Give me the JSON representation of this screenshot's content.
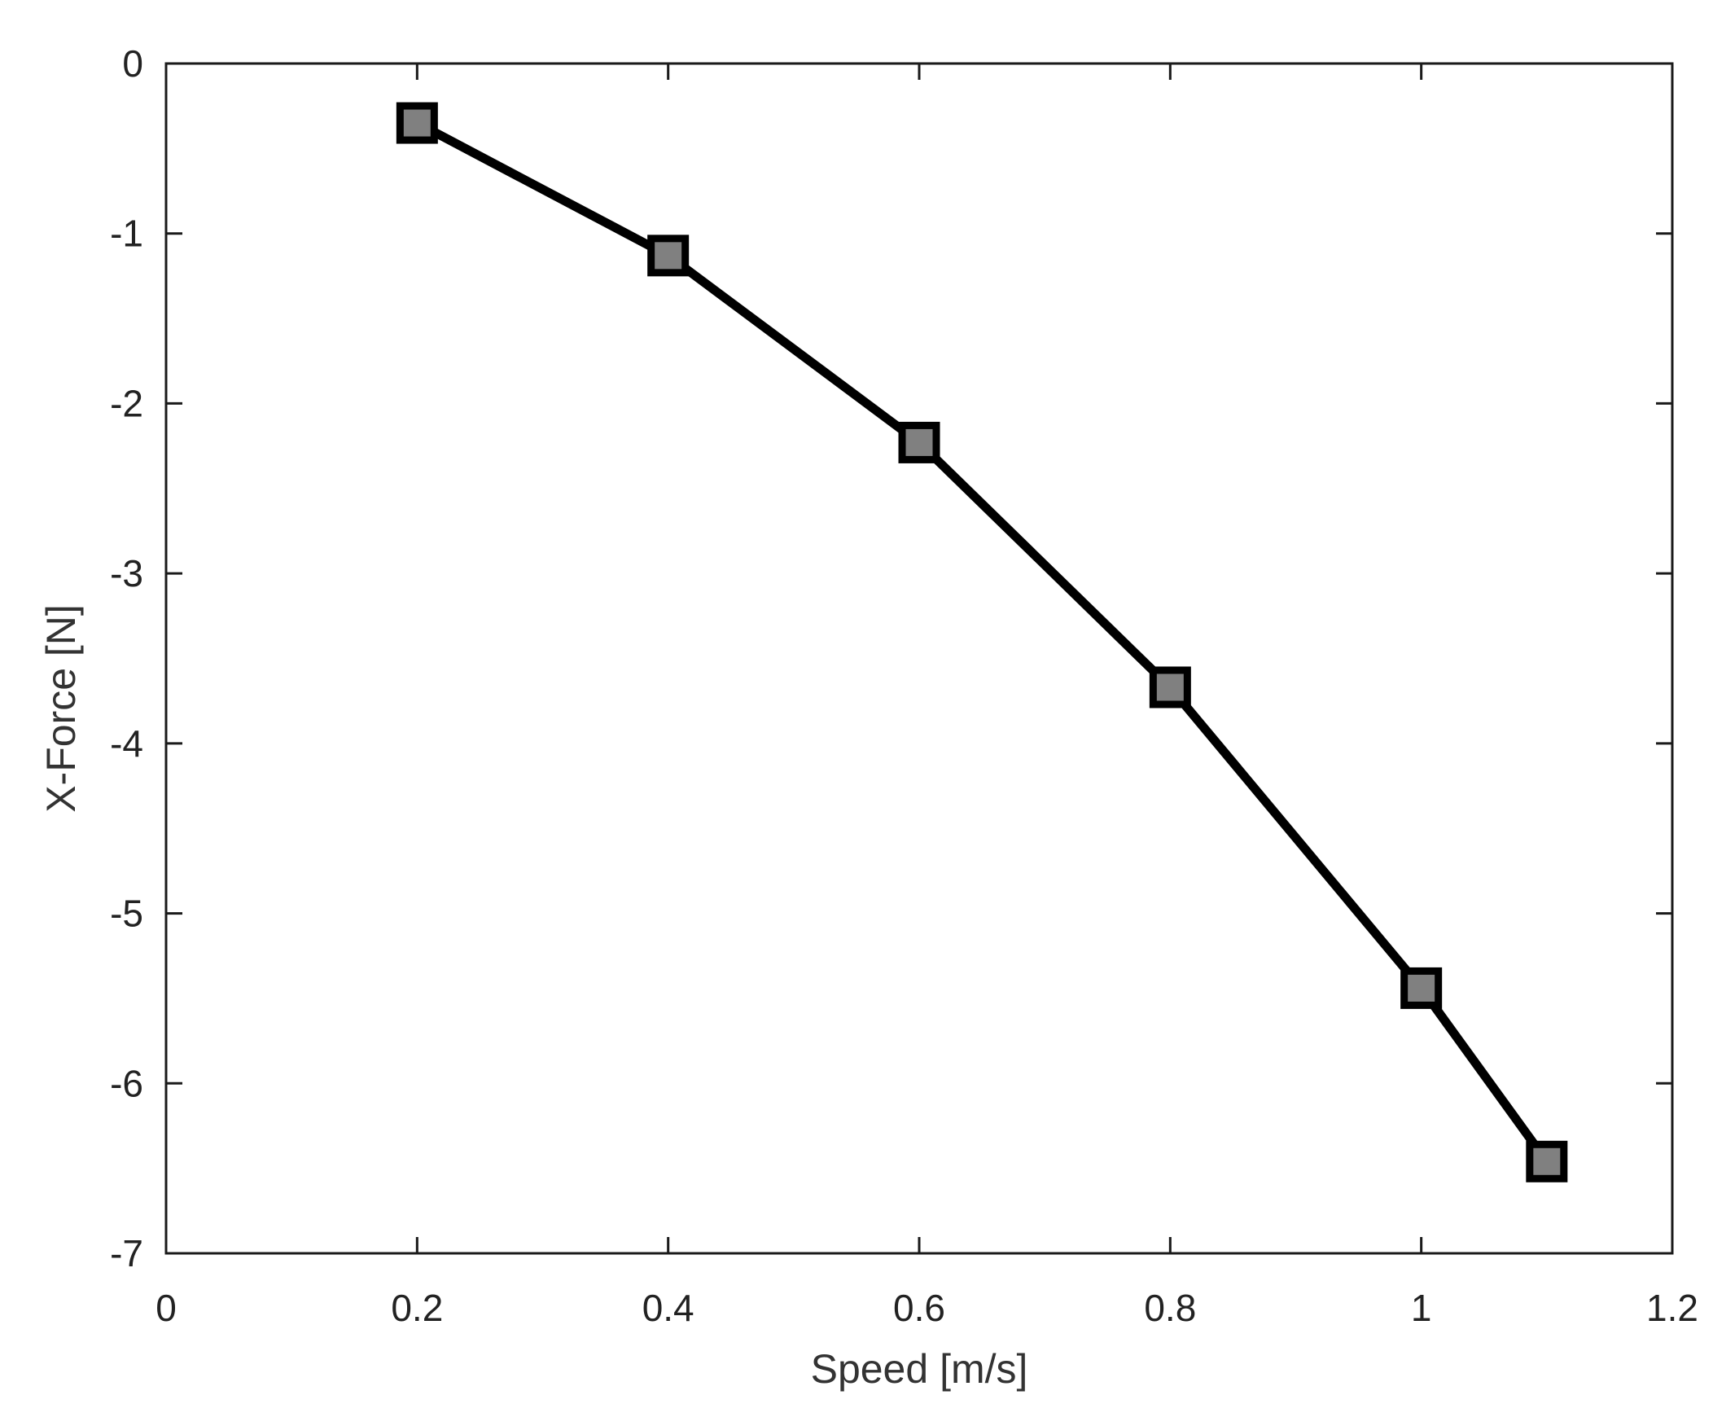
{
  "chart_data": {
    "type": "line",
    "title": "",
    "xlabel": "Speed [m/s]",
    "ylabel": "X-Force [N]",
    "xlim": [
      0,
      1.2
    ],
    "ylim": [
      -7,
      0
    ],
    "x_ticks": [
      0,
      0.2,
      0.4,
      0.6,
      0.8,
      1,
      1.2
    ],
    "x_tick_labels": [
      "0",
      "0.2",
      "0.4",
      "0.6",
      "0.8",
      "1",
      "1.2"
    ],
    "y_ticks": [
      0,
      -1,
      -2,
      -3,
      -4,
      -5,
      -6,
      -7
    ],
    "y_tick_labels": [
      "0",
      "-1",
      "-2",
      "-3",
      "-4",
      "-5",
      "-6",
      "-7"
    ],
    "grid": false,
    "legend": "none",
    "series": [
      {
        "x": [
          0.2,
          0.4,
          0.6,
          0.8,
          1.0,
          1.1
        ],
        "y": [
          -0.35,
          -1.13,
          -2.23,
          -3.67,
          -5.44,
          -6.46
        ],
        "line_color": "#000000",
        "marker": "square",
        "marker_fill": "#808080",
        "marker_edge": "#000000"
      }
    ],
    "colors": {
      "axes": "#1a1a1a",
      "tick_text": "#222222",
      "label_text": "#333333"
    }
  }
}
